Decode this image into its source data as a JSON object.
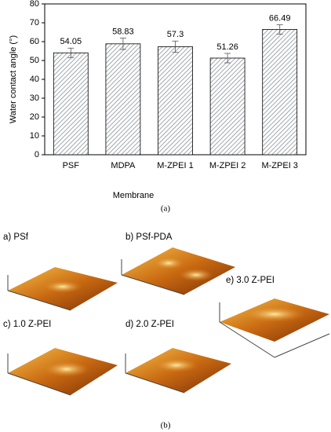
{
  "chart_data": {
    "type": "bar",
    "categories": [
      "PSF",
      "MDPA",
      "M-ZPEI 1",
      "M-ZPEI 2",
      "M-ZPEI 3"
    ],
    "values": [
      54.05,
      58.83,
      57.3,
      51.26,
      66.49
    ],
    "errors": [
      2.5,
      3,
      3,
      2.5,
      2.5
    ],
    "ylabel": "Water contact angle (°)",
    "xlabel": "Membrane",
    "ylim": [
      0,
      80
    ],
    "yticks": [
      0,
      10,
      20,
      30,
      40,
      50,
      60,
      70,
      80
    ],
    "color": "#9aa0a8",
    "grid": false
  },
  "caption_a": "(a)",
  "panels": [
    "a) PSf",
    "b) PSf-PDA",
    "c) 1.0 Z-PEI",
    "d) 2.0 Z-PEI",
    "e) 3.0 Z-PEI"
  ],
  "caption_b": "(b)"
}
